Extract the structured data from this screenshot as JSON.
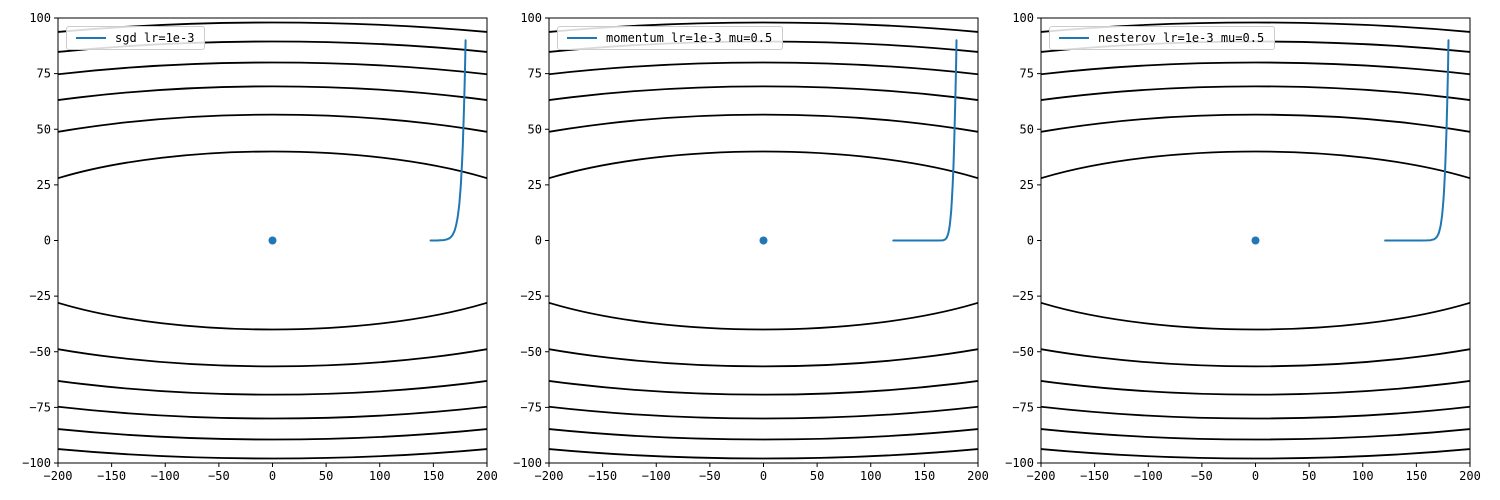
{
  "figure": {
    "background": "#ffffff"
  },
  "colors": {
    "trajectory": "#1f77b4",
    "minimum_dot": "#1f77b4",
    "contour": "#000000",
    "axis": "#000000",
    "legend_border": "#cccccc",
    "legend_background": "rgba(255,255,255,0.85)"
  },
  "chart_data": [
    {
      "type": "line",
      "subtype": "contour-with-trajectory",
      "legend": "sgd lr=1e-3",
      "legend_loc": "upper left",
      "grid": false,
      "xlim": [
        -200,
        200
      ],
      "ylim": [
        -100,
        100
      ],
      "xticks": [
        -200,
        -150,
        -100,
        -50,
        0,
        50,
        100,
        150,
        200
      ],
      "xtick_labels": [
        "−200",
        "−150",
        "−100",
        "−50",
        "0",
        "50",
        "100",
        "150",
        "200"
      ],
      "yticks": [
        -100,
        -75,
        -50,
        -25,
        0,
        25,
        50,
        75,
        100
      ],
      "ytick_labels": [
        "−100",
        "−75",
        "−50",
        "−25",
        "0",
        "25",
        "50",
        "75",
        "100"
      ],
      "contour_semi_minor": [
        40,
        56.57,
        69.28,
        80,
        89.44,
        97.98
      ],
      "contour_aspect": 7,
      "minimum": [
        0,
        0
      ],
      "start": [
        180,
        90
      ],
      "trajectory": [
        [
          180.0,
          90.0
        ],
        [
          179.64,
          81.18
        ],
        [
          179.28,
          73.23
        ],
        [
          178.92,
          66.05
        ],
        [
          178.56,
          59.57
        ],
        [
          178.21,
          53.73
        ],
        [
          177.85,
          48.47
        ],
        [
          177.49,
          43.72
        ],
        [
          177.14,
          39.43
        ],
        [
          176.78,
          35.57
        ],
        [
          176.43,
          32.08
        ],
        [
          176.08,
          28.94
        ],
        [
          175.73,
          26.1
        ],
        [
          175.37,
          23.54
        ],
        [
          175.02,
          21.24
        ],
        [
          174.67,
          19.15
        ],
        [
          174.33,
          17.28
        ],
        [
          173.98,
          15.58
        ],
        [
          173.63,
          14.06
        ],
        [
          173.28,
          12.68
        ],
        [
          172.94,
          11.44
        ],
        [
          172.25,
          9.31
        ],
        [
          171.21,
          6.83
        ],
        [
          170.19,
          5.01
        ],
        [
          169.51,
          4.08
        ],
        [
          167.82,
          2.44
        ],
        [
          166.14,
          1.45
        ],
        [
          164.48,
          0.87
        ],
        [
          162.84,
          0.52
        ],
        [
          159.6,
          0.19
        ],
        [
          156.43,
          0.07
        ],
        [
          153.32,
          0.02
        ],
        [
          150.27,
          0.01
        ],
        [
          147.28,
          0.0
        ]
      ]
    },
    {
      "type": "line",
      "subtype": "contour-with-trajectory",
      "legend": "momentum lr=1e-3 mu=0.5",
      "legend_loc": "upper left",
      "grid": false,
      "xlim": [
        -200,
        200
      ],
      "ylim": [
        -100,
        100
      ],
      "xticks": [
        -200,
        -150,
        -100,
        -50,
        0,
        50,
        100,
        150,
        200
      ],
      "xtick_labels": [
        "−200",
        "−150",
        "−100",
        "−50",
        "0",
        "50",
        "100",
        "150",
        "200"
      ],
      "yticks": [
        -100,
        -75,
        -50,
        -25,
        0,
        25,
        50,
        75,
        100
      ],
      "ytick_labels": [
        "−100",
        "−75",
        "−50",
        "−25",
        "0",
        "25",
        "50",
        "75",
        "100"
      ],
      "contour_semi_minor": [
        40,
        56.57,
        69.28,
        80,
        89.44,
        97.98
      ],
      "contour_aspect": 7,
      "minimum": [
        0,
        0
      ],
      "start": [
        180,
        90
      ],
      "trajectory": [
        [
          180.0,
          90.0
        ],
        [
          179.64,
          81.18
        ],
        [
          179.1,
          68.81
        ],
        [
          178.47,
          55.88
        ],
        [
          177.8,
          43.94
        ],
        [
          177.12,
          33.66
        ],
        [
          176.41,
          25.22
        ],
        [
          175.7,
          18.53
        ],
        [
          174.99,
          13.37
        ],
        [
          174.29,
          9.48
        ],
        [
          173.62,
          6.61
        ],
        [
          172.88,
          4.53
        ],
        [
          172.18,
          3.05
        ],
        [
          171.48,
          2.01
        ],
        [
          170.79,
          1.3
        ],
        [
          170.1,
          0.81
        ],
        [
          169.41,
          0.49
        ],
        [
          168.05,
          0.16
        ],
        [
          166.8,
          0.04
        ],
        [
          163.39,
          0.01
        ],
        [
          160.25,
          0.0
        ],
        [
          153.95,
          0.0
        ],
        [
          147.9,
          0.0
        ],
        [
          142.08,
          0.0
        ],
        [
          136.5,
          0.0
        ],
        [
          131.13,
          0.0
        ],
        [
          125.98,
          0.0
        ],
        [
          121.02,
          0.0
        ]
      ]
    },
    {
      "type": "line",
      "subtype": "contour-with-trajectory",
      "legend": "nesterov lr=1e-3 mu=0.5",
      "legend_loc": "upper left",
      "grid": false,
      "xlim": [
        -200,
        200
      ],
      "ylim": [
        -100,
        100
      ],
      "xticks": [
        -200,
        -150,
        -100,
        -50,
        0,
        50,
        100,
        150,
        200
      ],
      "xtick_labels": [
        "−200",
        "−150",
        "−100",
        "−50",
        "0",
        "50",
        "100",
        "150",
        "200"
      ],
      "yticks": [
        -100,
        -75,
        -50,
        -25,
        0,
        25,
        50,
        75,
        100
      ],
      "ytick_labels": [
        "−100",
        "−75",
        "−50",
        "−25",
        "0",
        "25",
        "50",
        "75",
        "100"
      ],
      "contour_semi_minor": [
        40,
        56.57,
        69.28,
        80,
        89.44,
        97.98
      ],
      "contour_aspect": 7,
      "minimum": [
        0,
        0
      ],
      "start": [
        180,
        90
      ],
      "trajectory": [
        [
          180.0,
          90.0
        ],
        [
          179.46,
          76.77
        ],
        [
          178.83,
          63.28
        ],
        [
          178.16,
          50.99
        ],
        [
          177.47,
          40.45
        ],
        [
          176.77,
          31.73
        ],
        [
          176.07,
          24.69
        ],
        [
          175.37,
          19.1
        ],
        [
          174.66,
          14.7
        ],
        [
          173.96,
          11.28
        ],
        [
          173.26,
          8.63
        ],
        [
          172.57,
          6.59
        ],
        [
          171.88,
          5.02
        ],
        [
          171.19,
          3.82
        ],
        [
          170.51,
          2.91
        ],
        [
          169.83,
          2.21
        ],
        [
          169.15,
          1.68
        ],
        [
          167.8,
          0.97
        ],
        [
          166.46,
          0.56
        ],
        [
          163.16,
          0.13
        ],
        [
          159.93,
          0.03
        ],
        [
          153.65,
          0.0
        ],
        [
          147.62,
          0.0
        ],
        [
          141.82,
          0.0
        ],
        [
          136.26,
          0.0
        ],
        [
          130.91,
          0.0
        ],
        [
          125.77,
          0.0
        ],
        [
          120.84,
          0.0
        ]
      ]
    }
  ]
}
